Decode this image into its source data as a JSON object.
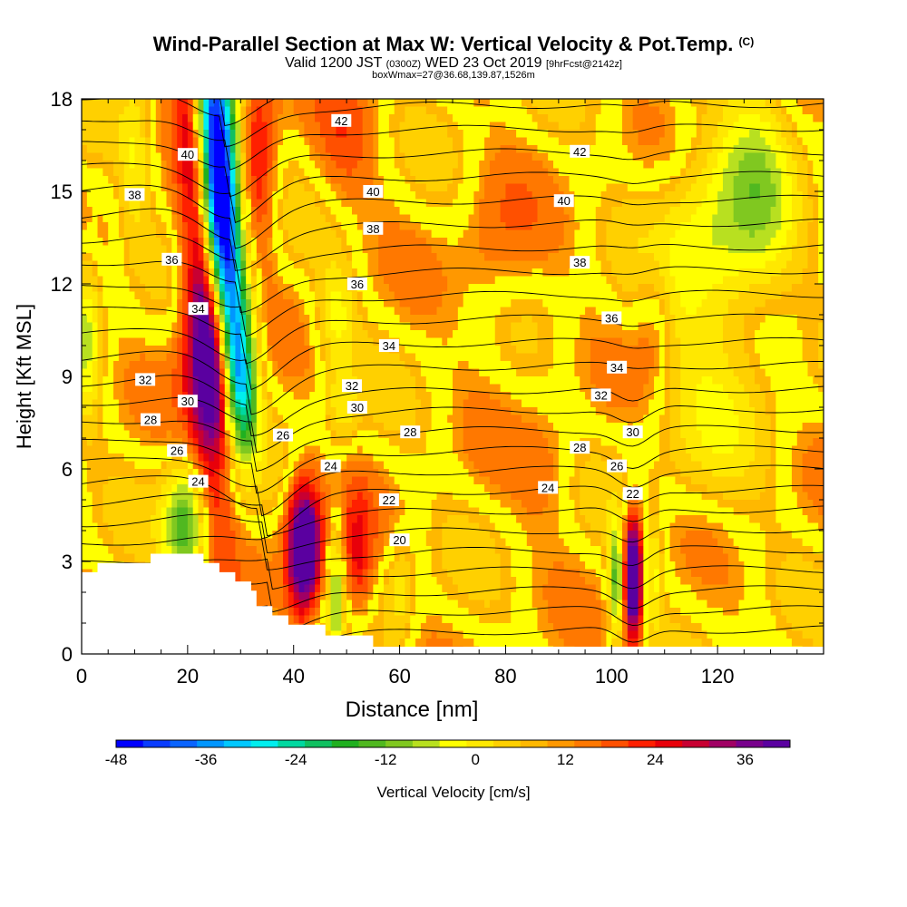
{
  "header": {
    "title": "Wind-Parallel Section at Max W: Vertical Velocity & Pot.Temp.",
    "copyright": "(C)",
    "valid_prefix": "Valid 1200 JST",
    "valid_utc": "(0300Z)",
    "valid_date": "WED 23 Oct 2019",
    "forecast": "[9hrFcst@2142z]",
    "box_info": "boxWmax=27@36.68,139.87,1526m"
  },
  "colorbar": {
    "label": "Vertical Velocity [cm/s]",
    "ticks": [
      "-48",
      "-36",
      "-24",
      "-12",
      "0",
      "12",
      "24",
      "36"
    ],
    "tick_values": [
      -48,
      -36,
      -24,
      -12,
      0,
      12,
      24,
      36
    ],
    "range": [
      -48,
      42
    ],
    "step": 3,
    "colors": [
      "#0000ff",
      "#0a3cff",
      "#0a64ff",
      "#0096ff",
      "#00c8ff",
      "#00eeee",
      "#00d8a0",
      "#10c060",
      "#20b020",
      "#50b820",
      "#80c820",
      "#b8e020",
      "#ffff00",
      "#ffe800",
      "#ffd000",
      "#ffb800",
      "#ff9800",
      "#ff7800",
      "#ff5000",
      "#ff2000",
      "#e8000a",
      "#c80032",
      "#a00064",
      "#78008c",
      "#5a00a0"
    ]
  },
  "chart_data": {
    "type": "heatmap",
    "xlabel": "Distance [nm]",
    "ylabel": "Height [Kft MSL]",
    "xlim": [
      0,
      140
    ],
    "ylim": [
      0,
      18
    ],
    "xticks": [
      "0",
      "20",
      "40",
      "60",
      "80",
      "100",
      "120"
    ],
    "xtick_values": [
      0,
      20,
      40,
      60,
      80,
      100,
      120
    ],
    "yticks": [
      "0",
      "3",
      "6",
      "9",
      "12",
      "15",
      "18"
    ],
    "ytick_values": [
      0,
      3,
      6,
      9,
      12,
      15,
      18
    ],
    "terrain": [
      [
        0,
        2.65
      ],
      [
        3,
        2.65
      ],
      [
        3,
        2.95
      ],
      [
        13,
        2.95
      ],
      [
        13,
        3.25
      ],
      [
        23,
        3.25
      ],
      [
        23,
        2.95
      ],
      [
        26,
        2.95
      ],
      [
        26,
        2.65
      ],
      [
        29,
        2.65
      ],
      [
        29,
        2.35
      ],
      [
        32,
        2.35
      ],
      [
        32,
        2.05
      ],
      [
        33,
        2.05
      ],
      [
        33,
        1.55
      ],
      [
        36,
        1.55
      ],
      [
        36,
        1.25
      ],
      [
        39,
        1.25
      ],
      [
        39,
        0.95
      ],
      [
        46,
        0.95
      ],
      [
        46,
        0.6
      ],
      [
        55,
        0.6
      ],
      [
        55,
        0
      ]
    ],
    "features": [
      {
        "x": 26,
        "y": 14.8,
        "amp": -45,
        "sx": 2.8,
        "sy": 3
      },
      {
        "x": 30,
        "y": 9.5,
        "amp": -22,
        "sx": 2.5,
        "sy": 2.5
      },
      {
        "x": 25,
        "y": 8,
        "amp": 18,
        "sx": 3,
        "sy": 3.5
      },
      {
        "x": 23,
        "y": 11,
        "amp": 20,
        "sx": 3,
        "sy": 2.5
      },
      {
        "x": 33,
        "y": 16,
        "amp": 14,
        "sx": 2.5,
        "sy": 2.5
      },
      {
        "x": 42,
        "y": 3.4,
        "amp": 40,
        "sx": 2.2,
        "sy": 1.4
      },
      {
        "x": 104,
        "y": 2.5,
        "amp": 38,
        "sx": 1.3,
        "sy": 1.4
      },
      {
        "x": 101,
        "y": 2.3,
        "amp": -22,
        "sx": 1.1,
        "sy": 1.3
      },
      {
        "x": 108,
        "y": 2.6,
        "amp": -10,
        "sx": 1.2,
        "sy": 1.2
      },
      {
        "x": 20,
        "y": 4.2,
        "amp": -22,
        "sx": 3,
        "sy": 1.5
      },
      {
        "x": 48,
        "y": 2.2,
        "amp": -14,
        "sx": 1,
        "sy": 1.5
      },
      {
        "x": 52,
        "y": 3,
        "amp": 12,
        "sx": 2,
        "sy": 1.5
      },
      {
        "x": 60,
        "y": 2,
        "amp": -8,
        "sx": 2,
        "sy": 1.2
      },
      {
        "x": 1,
        "y": 10.5,
        "amp": -12,
        "sx": 2,
        "sy": 2
      },
      {
        "x": 10,
        "y": 16,
        "amp": -8,
        "sx": 2,
        "sy": 2
      },
      {
        "x": 49,
        "y": 8,
        "amp": -8,
        "sx": 2,
        "sy": 1
      },
      {
        "x": 48,
        "y": 11,
        "amp": -10,
        "sx": 2.5,
        "sy": 1.2
      },
      {
        "x": 128,
        "y": 15.5,
        "amp": -10,
        "sx": 5,
        "sy": 3
      },
      {
        "x": 118,
        "y": 13,
        "amp": -12,
        "sx": 7,
        "sy": 2.5
      },
      {
        "x": 118,
        "y": 7,
        "amp": -5,
        "sx": 8,
        "sy": 2
      },
      {
        "x": 108,
        "y": 11,
        "amp": 6,
        "sx": 2.5,
        "sy": 1.5
      },
      {
        "x": 50,
        "y": 16.5,
        "amp": 6,
        "sx": 4,
        "sy": 1.5
      },
      {
        "x": 78,
        "y": 13,
        "amp": 5,
        "sx": 5,
        "sy": 2
      },
      {
        "x": 88,
        "y": 6,
        "amp": 4,
        "sx": 4,
        "sy": 1.5
      }
    ],
    "theta_contours": [
      {
        "label": "20",
        "level": 20,
        "pos": [
          60,
          3.7
        ]
      },
      {
        "label": "22",
        "level": 22,
        "pos": [
          58,
          5.0
        ]
      },
      {
        "label": "24",
        "level": 24,
        "pos": [
          22,
          5.6
        ]
      },
      {
        "label": "24",
        "level": 24,
        "pos": [
          47,
          6.1
        ]
      },
      {
        "label": "24",
        "level": 24,
        "pos": [
          88,
          5.4
        ]
      },
      {
        "label": "26",
        "level": 26,
        "pos": [
          18,
          6.6
        ]
      },
      {
        "label": "26",
        "level": 26,
        "pos": [
          38,
          7.1
        ]
      },
      {
        "label": "28",
        "level": 28,
        "pos": [
          13,
          7.6
        ]
      },
      {
        "label": "28",
        "level": 28,
        "pos": [
          62,
          7.2
        ]
      },
      {
        "label": "30",
        "level": 30,
        "pos": [
          20,
          8.2
        ]
      },
      {
        "label": "30",
        "level": 30,
        "pos": [
          52,
          8.0
        ]
      },
      {
        "label": "32",
        "level": 32,
        "pos": [
          12,
          8.9
        ]
      },
      {
        "label": "32",
        "level": 32,
        "pos": [
          51,
          8.7
        ]
      },
      {
        "label": "34",
        "level": 34,
        "pos": [
          22,
          11.2
        ]
      },
      {
        "label": "34",
        "level": 34,
        "pos": [
          58,
          10.0
        ]
      },
      {
        "label": "36",
        "level": 36,
        "pos": [
          17,
          12.8
        ]
      },
      {
        "label": "36",
        "level": 36,
        "pos": [
          52,
          12.0
        ]
      },
      {
        "label": "38",
        "level": 38,
        "pos": [
          10,
          14.9
        ]
      },
      {
        "label": "38",
        "level": 38,
        "pos": [
          55,
          13.8
        ]
      },
      {
        "label": "40",
        "level": 40,
        "pos": [
          20,
          16.2
        ]
      },
      {
        "label": "40",
        "level": 40,
        "pos": [
          55,
          15.0
        ]
      },
      {
        "label": "42",
        "level": 42,
        "pos": [
          49,
          17.3
        ]
      },
      {
        "label": "42",
        "level": 42,
        "pos": [
          94,
          16.3
        ]
      },
      {
        "label": "22",
        "level": 22,
        "pos": [
          104,
          5.2
        ]
      },
      {
        "label": "26",
        "level": 26,
        "pos": [
          101,
          6.1
        ]
      },
      {
        "label": "28",
        "level": 28,
        "pos": [
          94,
          6.7
        ]
      },
      {
        "label": "30",
        "level": 30,
        "pos": [
          104,
          7.2
        ]
      },
      {
        "label": "32",
        "level": 32,
        "pos": [
          98,
          8.4
        ]
      },
      {
        "label": "34",
        "level": 34,
        "pos": [
          101,
          9.3
        ]
      },
      {
        "label": "36",
        "level": 36,
        "pos": [
          100,
          10.9
        ]
      },
      {
        "label": "38",
        "level": 38,
        "pos": [
          94,
          12.7
        ]
      },
      {
        "label": "40",
        "level": 40,
        "pos": [
          91,
          14.7
        ]
      }
    ]
  }
}
